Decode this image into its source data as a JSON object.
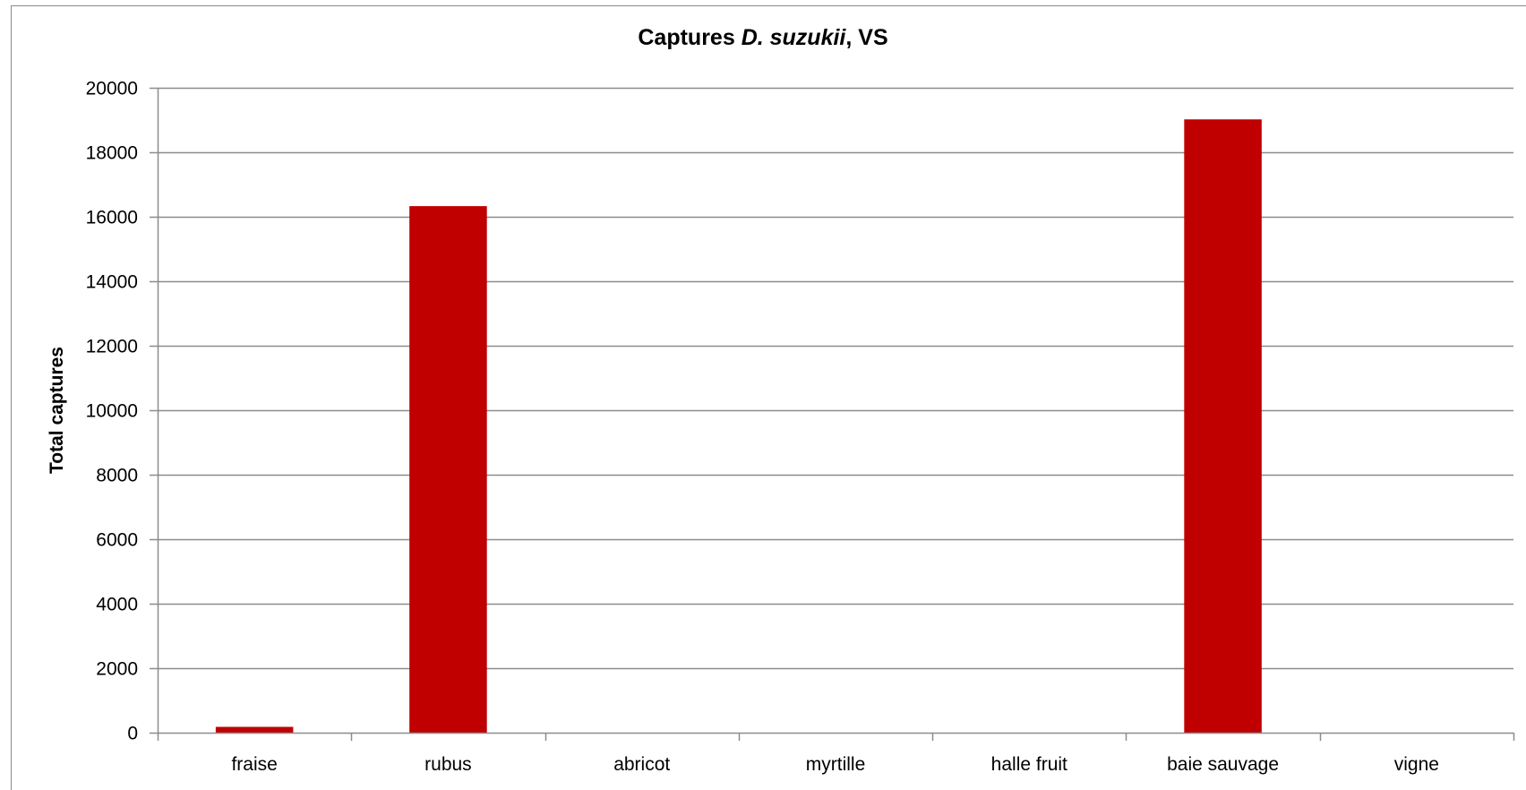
{
  "chart_data": {
    "type": "bar",
    "title": {
      "prefix": "Captures ",
      "italic": "D. suzukii",
      "suffix": ", VS"
    },
    "xlabel": "",
    "ylabel": "Total captures",
    "ylim": [
      0,
      20000
    ],
    "yticks": [
      0,
      2000,
      4000,
      6000,
      8000,
      10000,
      12000,
      14000,
      16000,
      18000,
      20000
    ],
    "grid": true,
    "categories": [
      "fraise",
      "rubus",
      "abricot",
      "myrtille",
      "halle fruit",
      "baie sauvage",
      "vigne"
    ],
    "values": [
      180,
      16330,
      0,
      0,
      0,
      19020,
      0
    ],
    "bar_color": "#C00000",
    "gridline_color": "#8C8C8C"
  }
}
